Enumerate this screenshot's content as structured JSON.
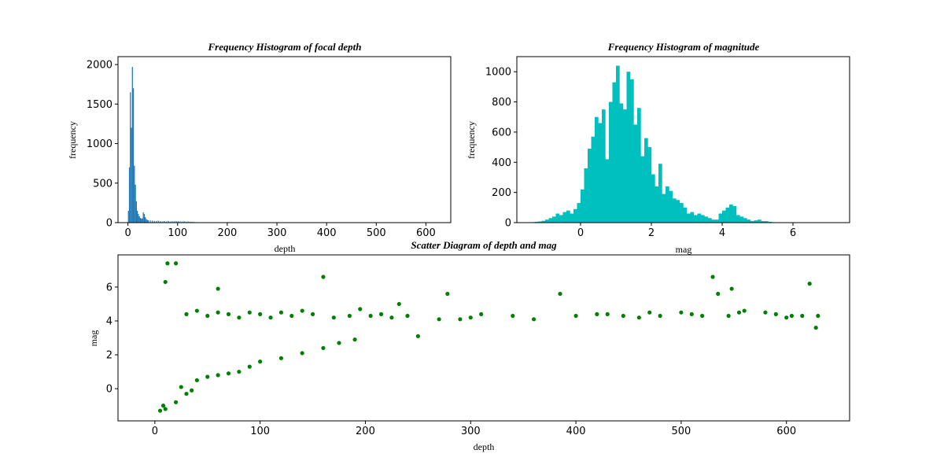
{
  "chart_data": [
    {
      "type": "bar",
      "title": "Frequency Histogram of focal depth",
      "xlabel": "depth",
      "ylabel": "frequency",
      "xlim": [
        -20,
        650
      ],
      "ylim": [
        0,
        2100
      ],
      "xticks": [
        0,
        100,
        200,
        300,
        400,
        500,
        600
      ],
      "yticks": [
        0,
        500,
        1000,
        1500,
        2000
      ],
      "color": "#1f77b4",
      "bins": [
        {
          "x": 0,
          "y": 150
        },
        {
          "x": 2,
          "y": 700
        },
        {
          "x": 4,
          "y": 1650
        },
        {
          "x": 6,
          "y": 1200
        },
        {
          "x": 8,
          "y": 1970
        },
        {
          "x": 10,
          "y": 1700
        },
        {
          "x": 12,
          "y": 720
        },
        {
          "x": 14,
          "y": 480
        },
        {
          "x": 16,
          "y": 270
        },
        {
          "x": 18,
          "y": 150
        },
        {
          "x": 20,
          "y": 110
        },
        {
          "x": 22,
          "y": 80
        },
        {
          "x": 24,
          "y": 60
        },
        {
          "x": 26,
          "y": 50
        },
        {
          "x": 28,
          "y": 55
        },
        {
          "x": 30,
          "y": 130
        },
        {
          "x": 32,
          "y": 110
        },
        {
          "x": 34,
          "y": 70
        },
        {
          "x": 36,
          "y": 45
        },
        {
          "x": 38,
          "y": 35
        },
        {
          "x": 40,
          "y": 30
        },
        {
          "x": 44,
          "y": 28
        },
        {
          "x": 48,
          "y": 25
        },
        {
          "x": 52,
          "y": 22
        },
        {
          "x": 56,
          "y": 20
        },
        {
          "x": 60,
          "y": 25
        },
        {
          "x": 64,
          "y": 18
        },
        {
          "x": 68,
          "y": 15
        },
        {
          "x": 72,
          "y": 20
        },
        {
          "x": 76,
          "y": 15
        },
        {
          "x": 80,
          "y": 22
        },
        {
          "x": 84,
          "y": 14
        },
        {
          "x": 88,
          "y": 18
        },
        {
          "x": 92,
          "y": 16
        },
        {
          "x": 96,
          "y": 20
        },
        {
          "x": 100,
          "y": 18
        },
        {
          "x": 104,
          "y": 16
        },
        {
          "x": 108,
          "y": 14
        },
        {
          "x": 112,
          "y": 18
        },
        {
          "x": 116,
          "y": 12
        },
        {
          "x": 120,
          "y": 15
        },
        {
          "x": 124,
          "y": 12
        },
        {
          "x": 128,
          "y": 10
        },
        {
          "x": 132,
          "y": 8
        },
        {
          "x": 136,
          "y": 6
        },
        {
          "x": 140,
          "y": 5
        },
        {
          "x": 150,
          "y": 4
        },
        {
          "x": 160,
          "y": 3
        },
        {
          "x": 170,
          "y": 3
        },
        {
          "x": 180,
          "y": 2
        },
        {
          "x": 190,
          "y": 2
        },
        {
          "x": 200,
          "y": 2
        },
        {
          "x": 220,
          "y": 1
        },
        {
          "x": 250,
          "y": 1
        },
        {
          "x": 280,
          "y": 1
        },
        {
          "x": 300,
          "y": 1
        },
        {
          "x": 400,
          "y": 1
        },
        {
          "x": 450,
          "y": 1
        },
        {
          "x": 500,
          "y": 1
        },
        {
          "x": 550,
          "y": 1
        },
        {
          "x": 600,
          "y": 1
        },
        {
          "x": 620,
          "y": 1
        }
      ],
      "bin_width": 2
    },
    {
      "type": "bar",
      "title": "Frequency Histogram of magnitude",
      "xlabel": "mag",
      "ylabel": "frequency",
      "xlim": [
        -1.8,
        7.6
      ],
      "ylim": [
        0,
        1100
      ],
      "xticks": [
        0,
        2,
        4,
        6
      ],
      "yticks": [
        0,
        200,
        400,
        600,
        800,
        1000
      ],
      "color": "#00bfbf",
      "bin_start": -1.4,
      "bin_width": 0.1,
      "counts": [
        3,
        5,
        8,
        12,
        20,
        30,
        40,
        60,
        50,
        70,
        80,
        60,
        90,
        130,
        220,
        360,
        490,
        570,
        700,
        660,
        750,
        420,
        800,
        930,
        1040,
        790,
        750,
        1000,
        950,
        650,
        760,
        440,
        560,
        500,
        320,
        240,
        390,
        190,
        240,
        210,
        160,
        150,
        130,
        100,
        60,
        70,
        50,
        60,
        50,
        40,
        30,
        20,
        20,
        60,
        80,
        100,
        120,
        110,
        50,
        40,
        30,
        20,
        10,
        15,
        20,
        10,
        10,
        5,
        3,
        2,
        2,
        2,
        2,
        1,
        1,
        1,
        1,
        1,
        1,
        1,
        1,
        1,
        1,
        1,
        1,
        1
      ]
    },
    {
      "type": "scatter",
      "title": "Scatter Diagram of depth and mag",
      "xlabel": "depth",
      "ylabel": "mag",
      "xlim": [
        -35,
        660
      ],
      "ylim": [
        -1.9,
        7.9
      ],
      "xticks": [
        0,
        100,
        200,
        300,
        400,
        500,
        600
      ],
      "yticks": [
        0,
        2,
        4,
        6
      ],
      "color": "#008000",
      "points": [
        [
          20,
          7.4
        ],
        [
          12,
          7.4
        ],
        [
          160,
          6.6
        ],
        [
          10,
          6.3
        ],
        [
          530,
          6.6
        ],
        [
          622,
          6.2
        ],
        [
          385,
          5.6
        ],
        [
          278,
          5.6
        ],
        [
          548,
          5.9
        ],
        [
          535,
          5.6
        ],
        [
          60,
          5.9
        ],
        [
          250,
          3.1
        ],
        [
          628,
          3.6
        ],
        [
          232,
          5.0
        ],
        [
          195,
          4.7
        ],
        [
          300,
          4.2
        ],
        [
          310,
          4.4
        ],
        [
          360,
          4.1
        ],
        [
          400,
          4.3
        ],
        [
          420,
          4.4
        ],
        [
          445,
          4.3
        ],
        [
          480,
          4.3
        ],
        [
          500,
          4.5
        ],
        [
          520,
          4.3
        ],
        [
          560,
          4.6
        ],
        [
          580,
          4.5
        ],
        [
          600,
          4.2
        ],
        [
          615,
          4.3
        ],
        [
          270,
          4.1
        ],
        [
          290,
          4.1
        ],
        [
          340,
          4.3
        ],
        [
          430,
          4.4
        ],
        [
          460,
          4.2
        ],
        [
          470,
          4.5
        ],
        [
          510,
          4.4
        ],
        [
          545,
          4.3
        ],
        [
          555,
          4.5
        ],
        [
          590,
          4.4
        ],
        [
          605,
          4.3
        ],
        [
          630,
          4.3
        ],
        [
          215,
          4.4
        ],
        [
          240,
          4.3
        ],
        [
          225,
          4.2
        ],
        [
          205,
          4.3
        ],
        [
          185,
          4.3
        ],
        [
          170,
          4.2
        ],
        [
          150,
          4.4
        ],
        [
          140,
          4.6
        ],
        [
          130,
          4.3
        ],
        [
          120,
          4.5
        ],
        [
          110,
          4.2
        ],
        [
          100,
          4.4
        ],
        [
          90,
          4.5
        ],
        [
          80,
          4.2
        ],
        [
          70,
          4.4
        ],
        [
          60,
          4.5
        ],
        [
          50,
          4.3
        ],
        [
          40,
          4.6
        ],
        [
          30,
          4.4
        ],
        [
          175,
          2.7
        ],
        [
          190,
          2.9
        ],
        [
          160,
          2.4
        ],
        [
          140,
          2.1
        ],
        [
          120,
          1.8
        ],
        [
          100,
          1.6
        ],
        [
          90,
          1.3
        ],
        [
          80,
          1.0
        ],
        [
          70,
          0.9
        ],
        [
          60,
          0.8
        ],
        [
          50,
          0.7
        ],
        [
          40,
          0.5
        ],
        [
          30,
          -0.3
        ],
        [
          20,
          -0.8
        ],
        [
          10,
          -1.2
        ],
        [
          5,
          -1.3
        ],
        [
          8,
          -1.0
        ],
        [
          35,
          -0.1
        ],
        [
          25,
          0.1
        ]
      ]
    }
  ]
}
